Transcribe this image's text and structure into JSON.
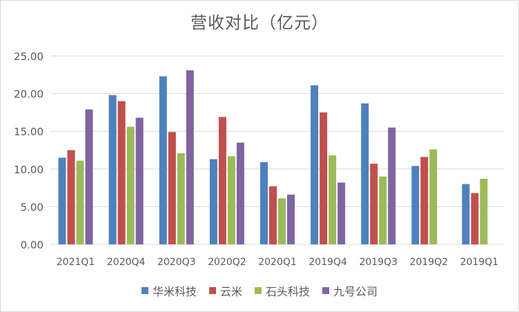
{
  "chart_data": {
    "type": "bar",
    "title": "营收对比（亿元）",
    "xlabel": "",
    "ylabel": "",
    "ylim": [
      0,
      25
    ],
    "yticks": [
      "0.00",
      "5.00",
      "10.00",
      "15.00",
      "20.00",
      "25.00"
    ],
    "grid": true,
    "legend_position": "bottom",
    "categories": [
      "2021Q1",
      "2020Q4",
      "2020Q3",
      "2020Q2",
      "2020Q1",
      "2019Q4",
      "2019Q3",
      "2019Q2",
      "2019Q1"
    ],
    "series": [
      {
        "name": "华米科技",
        "color": "#4f81bd",
        "values": [
          11.5,
          19.8,
          22.3,
          11.3,
          10.9,
          21.1,
          18.7,
          10.4,
          8.0
        ]
      },
      {
        "name": "云米",
        "color": "#c0504d",
        "values": [
          12.5,
          19.0,
          14.9,
          16.9,
          7.7,
          17.5,
          10.7,
          11.6,
          6.8
        ]
      },
      {
        "name": "石头科技",
        "color": "#9bbb59",
        "values": [
          11.1,
          15.6,
          12.1,
          11.7,
          6.1,
          11.8,
          9.0,
          12.6,
          8.7
        ]
      },
      {
        "name": "九号公司",
        "color": "#8064a2",
        "values": [
          17.9,
          16.8,
          23.1,
          13.5,
          6.6,
          8.2,
          15.5,
          null,
          null
        ]
      }
    ]
  }
}
